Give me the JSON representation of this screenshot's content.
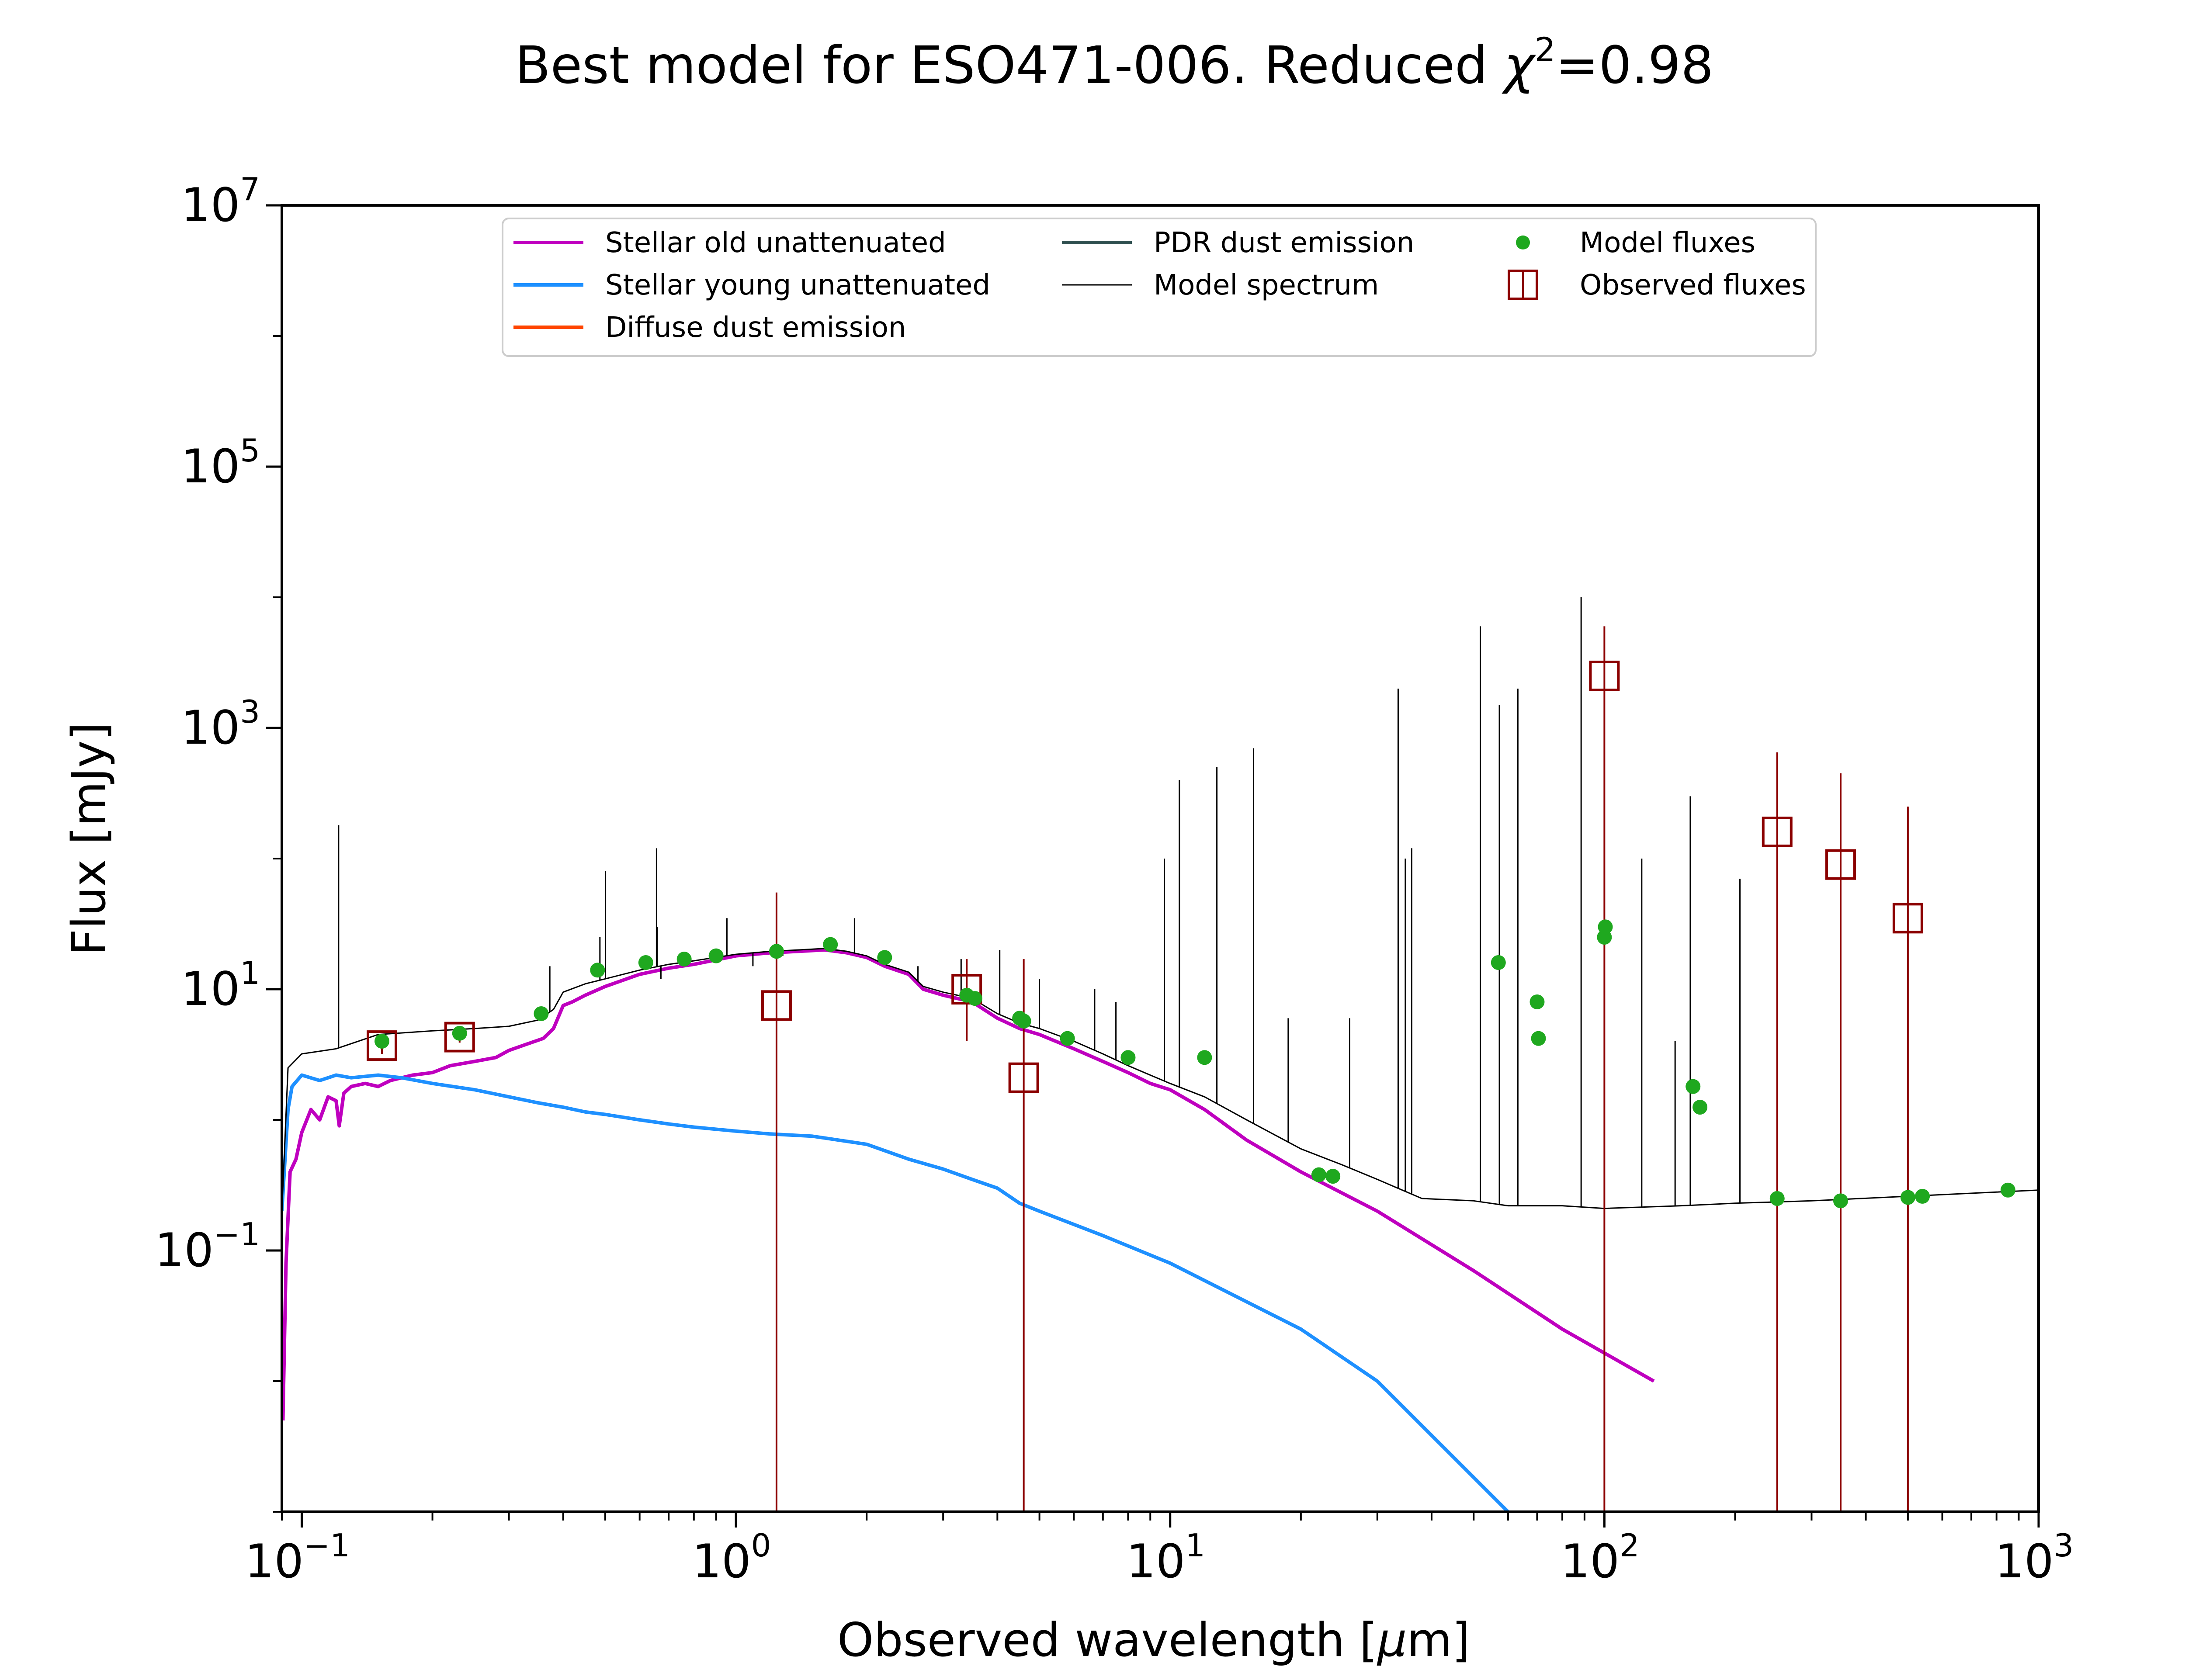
{
  "chart_data": {
    "type": "line",
    "title": "Best model for ESO471-006. Reduced χ²=0.98",
    "title_parts": {
      "prefix": "Best model for ESO471-006. Reduced ",
      "symbol": "χ",
      "sup": "2",
      "suffix": "=0.98"
    },
    "xlabel": "Observed wavelength [μm]",
    "xlabel_parts": {
      "prefix": "Observed wavelength [",
      "mu": "μ",
      "suffix": "m]"
    },
    "ylabel": "Flux [mJy]",
    "xscale": "log",
    "yscale": "log",
    "xlim": [
      0.09,
      1000
    ],
    "ylim": [
      0.001,
      10000000
    ],
    "xticks": [
      {
        "value": 0.1,
        "base": "10",
        "exp": "−1"
      },
      {
        "value": 1,
        "base": "10",
        "exp": "0"
      },
      {
        "value": 10,
        "base": "10",
        "exp": "1"
      },
      {
        "value": 100,
        "base": "10",
        "exp": "2"
      },
      {
        "value": 1000,
        "base": "10",
        "exp": "3"
      }
    ],
    "yticks": [
      {
        "value": 0.1,
        "base": "10",
        "exp": "−1"
      },
      {
        "value": 10,
        "base": "10",
        "exp": "1"
      },
      {
        "value": 1000,
        "base": "10",
        "exp": "3"
      },
      {
        "value": 100000,
        "base": "10",
        "exp": "5"
      },
      {
        "value": 10000000,
        "base": "10",
        "exp": "7"
      }
    ],
    "grid": false,
    "legend": {
      "placement": "top-center",
      "entries": [
        {
          "label": "Stellar old unattenuated",
          "kind": "line",
          "color": "#bf00bf"
        },
        {
          "label": "Stellar young unattenuated",
          "kind": "line",
          "color": "#1e90ff"
        },
        {
          "label": "Diffuse dust emission",
          "kind": "line",
          "color": "#ff4500"
        },
        {
          "label": "PDR dust emission",
          "kind": "line",
          "color": "#2f4f4f"
        },
        {
          "label": "Model spectrum",
          "kind": "thin-line",
          "color": "#000000"
        },
        {
          "label": "Model fluxes",
          "kind": "dot",
          "color": "#1fa81f"
        },
        {
          "label": "Observed fluxes",
          "kind": "square",
          "color": "#8b0000"
        }
      ]
    },
    "series": [
      {
        "name": "Stellar old unattenuated",
        "color": "#bf00bf",
        "points": [
          [
            0.0905,
            0.005
          ],
          [
            0.092,
            0.08
          ],
          [
            0.094,
            0.4
          ],
          [
            0.097,
            0.5
          ],
          [
            0.1,
            0.8
          ],
          [
            0.105,
            1.2
          ],
          [
            0.11,
            1.0
          ],
          [
            0.115,
            1.5
          ],
          [
            0.12,
            1.4
          ],
          [
            0.122,
            0.9
          ],
          [
            0.125,
            1.6
          ],
          [
            0.13,
            1.8
          ],
          [
            0.14,
            1.9
          ],
          [
            0.15,
            1.8
          ],
          [
            0.16,
            2.0
          ],
          [
            0.18,
            2.2
          ],
          [
            0.2,
            2.3
          ],
          [
            0.22,
            2.6
          ],
          [
            0.25,
            2.8
          ],
          [
            0.28,
            3.0
          ],
          [
            0.3,
            3.4
          ],
          [
            0.33,
            3.8
          ],
          [
            0.36,
            4.2
          ],
          [
            0.38,
            5.0
          ],
          [
            0.4,
            7.5
          ],
          [
            0.42,
            8.0
          ],
          [
            0.45,
            9.0
          ],
          [
            0.5,
            10.5
          ],
          [
            0.6,
            13.0
          ],
          [
            0.7,
            14.5
          ],
          [
            0.8,
            15.5
          ],
          [
            1.0,
            18.0
          ],
          [
            1.2,
            19.0
          ],
          [
            1.4,
            19.5
          ],
          [
            1.6,
            20.0
          ],
          [
            1.8,
            19.0
          ],
          [
            2.0,
            17.5
          ],
          [
            2.2,
            15.0
          ],
          [
            2.5,
            13.0
          ],
          [
            2.7,
            10.0
          ],
          [
            3.0,
            9.0
          ],
          [
            3.5,
            8.0
          ],
          [
            4.0,
            6.0
          ],
          [
            4.5,
            5.0
          ],
          [
            5.0,
            4.5
          ],
          [
            6.0,
            3.5
          ],
          [
            7.0,
            2.8
          ],
          [
            8.0,
            2.3
          ],
          [
            9.0,
            1.9
          ],
          [
            10.0,
            1.7
          ],
          [
            12.0,
            1.2
          ],
          [
            15.0,
            0.7
          ],
          [
            20.0,
            0.4
          ],
          [
            30.0,
            0.2
          ],
          [
            50.0,
            0.07
          ],
          [
            80.0,
            0.025
          ],
          [
            130.0,
            0.01
          ]
        ]
      },
      {
        "name": "Stellar young unattenuated",
        "color": "#1e90ff",
        "points": [
          [
            0.09,
            0.2
          ],
          [
            0.093,
            1.2
          ],
          [
            0.095,
            1.8
          ],
          [
            0.1,
            2.2
          ],
          [
            0.11,
            2.0
          ],
          [
            0.12,
            2.2
          ],
          [
            0.13,
            2.1
          ],
          [
            0.15,
            2.2
          ],
          [
            0.17,
            2.1
          ],
          [
            0.2,
            1.9
          ],
          [
            0.25,
            1.7
          ],
          [
            0.3,
            1.5
          ],
          [
            0.35,
            1.35
          ],
          [
            0.4,
            1.25
          ],
          [
            0.45,
            1.15
          ],
          [
            0.5,
            1.1
          ],
          [
            0.6,
            1.0
          ],
          [
            0.7,
            0.93
          ],
          [
            0.8,
            0.88
          ],
          [
            1.0,
            0.82
          ],
          [
            1.2,
            0.78
          ],
          [
            1.5,
            0.75
          ],
          [
            2.0,
            0.65
          ],
          [
            2.5,
            0.5
          ],
          [
            3.0,
            0.42
          ],
          [
            3.5,
            0.35
          ],
          [
            4.0,
            0.3
          ],
          [
            4.5,
            0.23
          ],
          [
            5.0,
            0.2
          ],
          [
            7.0,
            0.13
          ],
          [
            10.0,
            0.08
          ],
          [
            20.0,
            0.025
          ],
          [
            30.0,
            0.01
          ],
          [
            60.0,
            0.001
          ]
        ]
      },
      {
        "name": "Model spectrum",
        "color": "#000000",
        "points": [
          [
            0.09,
            0.2
          ],
          [
            0.093,
            2.5
          ],
          [
            0.1,
            3.2
          ],
          [
            0.12,
            3.5
          ],
          [
            0.15,
            4.5
          ],
          [
            0.2,
            4.8
          ],
          [
            0.25,
            5.0
          ],
          [
            0.3,
            5.2
          ],
          [
            0.35,
            5.8
          ],
          [
            0.38,
            7.0
          ],
          [
            0.4,
            9.5
          ],
          [
            0.45,
            11.0
          ],
          [
            0.5,
            12.0
          ],
          [
            0.6,
            14.0
          ],
          [
            0.7,
            15.5
          ],
          [
            0.8,
            16.5
          ],
          [
            1.0,
            18.5
          ],
          [
            1.2,
            19.5
          ],
          [
            1.4,
            20.0
          ],
          [
            1.6,
            20.5
          ],
          [
            1.8,
            19.5
          ],
          [
            2.0,
            18.0
          ],
          [
            2.2,
            15.5
          ],
          [
            2.5,
            13.5
          ],
          [
            2.7,
            10.5
          ],
          [
            3.0,
            9.5
          ],
          [
            3.5,
            8.5
          ],
          [
            4.0,
            6.5
          ],
          [
            4.5,
            5.5
          ],
          [
            5.0,
            5.0
          ],
          [
            6.0,
            4.0
          ],
          [
            7.0,
            3.2
          ],
          [
            8.0,
            2.6
          ],
          [
            9.0,
            2.2
          ],
          [
            10.0,
            1.9
          ],
          [
            12.0,
            1.5
          ],
          [
            15.0,
            1.0
          ],
          [
            20.0,
            0.6
          ],
          [
            25.0,
            0.45
          ],
          [
            30.0,
            0.35
          ],
          [
            38.0,
            0.25
          ],
          [
            50.0,
            0.24
          ],
          [
            60.0,
            0.22
          ],
          [
            80.0,
            0.22
          ],
          [
            100.0,
            0.21
          ],
          [
            150.0,
            0.22
          ],
          [
            200.0,
            0.23
          ],
          [
            300.0,
            0.24
          ],
          [
            500.0,
            0.26
          ],
          [
            800.0,
            0.28
          ],
          [
            1000.0,
            0.29
          ]
        ]
      }
    ],
    "emission_lines": [
      [
        0.1216,
        180
      ],
      [
        0.3727,
        15
      ],
      [
        0.4861,
        25
      ],
      [
        0.5007,
        80
      ],
      [
        0.6563,
        120
      ],
      [
        0.6583,
        30
      ],
      [
        0.6717,
        12
      ],
      [
        0.9069,
        20
      ],
      [
        0.9532,
        35
      ],
      [
        1.0941,
        15
      ],
      [
        1.2818,
        18
      ],
      [
        1.875,
        35
      ],
      [
        2.625,
        15
      ],
      [
        3.3,
        17
      ],
      [
        4.05,
        20
      ],
      [
        5.0,
        12
      ],
      [
        6.7,
        10
      ],
      [
        7.5,
        8
      ],
      [
        9.7,
        100
      ],
      [
        10.5,
        400
      ],
      [
        12.81,
        500
      ],
      [
        15.56,
        700
      ],
      [
        18.7,
        6
      ],
      [
        25.9,
        6
      ],
      [
        33.5,
        2000
      ],
      [
        34.8,
        100
      ],
      [
        36.0,
        120
      ],
      [
        51.8,
        6000
      ],
      [
        57.3,
        1500
      ],
      [
        63.2,
        2000
      ],
      [
        88.4,
        10000
      ],
      [
        121.9,
        100
      ],
      [
        145.5,
        4
      ],
      [
        157.7,
        300
      ],
      [
        205.2,
        70
      ]
    ],
    "model_fluxes": [
      [
        0.153,
        4.0
      ],
      [
        0.231,
        4.6
      ],
      [
        0.356,
        6.5
      ],
      [
        0.48,
        14.0
      ],
      [
        0.62,
        16.0
      ],
      [
        0.76,
        17.0
      ],
      [
        0.9,
        18.0
      ],
      [
        1.24,
        19.5
      ],
      [
        1.65,
        22.0
      ],
      [
        2.2,
        17.5
      ],
      [
        3.4,
        9.0
      ],
      [
        3.55,
        8.5
      ],
      [
        4.5,
        6.0
      ],
      [
        4.6,
        5.7
      ],
      [
        5.8,
        4.2
      ],
      [
        8.0,
        3.0
      ],
      [
        12.0,
        3.0
      ],
      [
        22.0,
        0.38
      ],
      [
        23.7,
        0.37
      ],
      [
        57.0,
        16.0
      ],
      [
        70.0,
        8.0
      ],
      [
        70.5,
        4.2
      ],
      [
        100.0,
        25.0
      ],
      [
        100.5,
        30.0
      ],
      [
        160.0,
        1.8
      ],
      [
        166.0,
        1.25
      ],
      [
        250.0,
        0.25
      ],
      [
        350.0,
        0.24
      ],
      [
        500.0,
        0.255
      ],
      [
        540.0,
        0.26
      ],
      [
        850.0,
        0.29
      ]
    ],
    "observed_fluxes": [
      {
        "x": 0.153,
        "y": 3.7,
        "err_low": 3.2,
        "err_high": 4.2
      },
      {
        "x": 0.231,
        "y": 4.3,
        "err_low": 3.9,
        "err_high": 4.8
      },
      {
        "x": 1.24,
        "y": 7.5,
        "err_low": 0.001,
        "err_high": 55
      },
      {
        "x": 3.4,
        "y": 10.0,
        "err_low": 4.0,
        "err_high": 17
      },
      {
        "x": 4.6,
        "y": 2.1,
        "err_low": 0.001,
        "err_high": 17
      },
      {
        "x": 100.0,
        "y": 2500,
        "err_low": 0.001,
        "err_high": 6000
      },
      {
        "x": 250.0,
        "y": 160,
        "err_low": 0.001,
        "err_high": 650
      },
      {
        "x": 350.0,
        "y": 90,
        "err_low": 0.001,
        "err_high": 450
      },
      {
        "x": 500.0,
        "y": 35,
        "err_low": 0.001,
        "err_high": 250
      }
    ]
  }
}
